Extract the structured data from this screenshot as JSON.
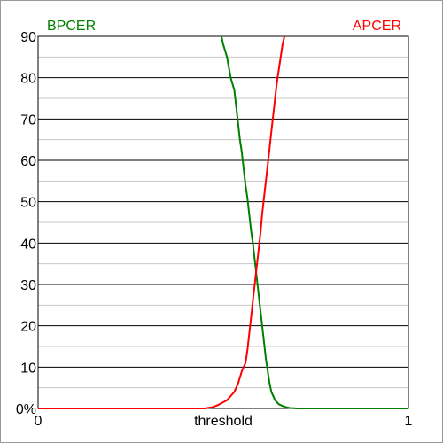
{
  "chart_data": {
    "type": "line",
    "title": "",
    "xlabel": "threshold",
    "ylabel": "",
    "xlim": [
      0,
      1
    ],
    "ylim": [
      0,
      90
    ],
    "grid": true,
    "legend_placement": "top",
    "x_tick_labels": [
      {
        "value": 0,
        "label": "0"
      },
      {
        "value": 1,
        "label": "1"
      }
    ],
    "y_tick_labels": [
      {
        "value": 0,
        "label": "0%"
      },
      {
        "value": 10,
        "label": "10"
      },
      {
        "value": 20,
        "label": "20"
      },
      {
        "value": 30,
        "label": "30"
      },
      {
        "value": 40,
        "label": "40"
      },
      {
        "value": 50,
        "label": "50"
      },
      {
        "value": 60,
        "label": "60"
      },
      {
        "value": 70,
        "label": "70"
      },
      {
        "value": 80,
        "label": "80"
      },
      {
        "value": 90,
        "label": "90"
      }
    ],
    "series": [
      {
        "name": "BPCER",
        "color": "#008000",
        "x": [
          0.495,
          0.5,
          0.51,
          0.52,
          0.53,
          0.535,
          0.54,
          0.545,
          0.55,
          0.555,
          0.56,
          0.565,
          0.57,
          0.575,
          0.58,
          0.585,
          0.59,
          0.595,
          0.6,
          0.605,
          0.61,
          0.615,
          0.62,
          0.625,
          0.63,
          0.64,
          0.65,
          0.66,
          0.67,
          0.68,
          0.7,
          1.0
        ],
        "y": [
          90,
          88,
          85,
          80,
          77,
          73,
          69,
          65,
          62,
          58,
          54,
          51,
          47,
          43,
          40,
          36,
          32,
          28,
          24,
          20,
          16,
          12,
          9,
          6,
          4,
          2,
          1,
          0.6,
          0.3,
          0.1,
          0,
          0
        ]
      },
      {
        "name": "APCER",
        "color": "#ff0000",
        "x": [
          0.0,
          0.45,
          0.47,
          0.48,
          0.49,
          0.5,
          0.51,
          0.52,
          0.53,
          0.54,
          0.55,
          0.56,
          0.565,
          0.57,
          0.575,
          0.58,
          0.585,
          0.59,
          0.595,
          0.6,
          0.605,
          0.61,
          0.615,
          0.62,
          0.625,
          0.63,
          0.635,
          0.64,
          0.645,
          0.65,
          0.655,
          0.66,
          0.665
        ],
        "y": [
          0,
          0,
          0.3,
          0.6,
          1,
          1.5,
          2,
          3,
          4,
          6,
          9,
          11,
          14,
          18,
          22,
          26,
          30,
          34,
          38,
          42,
          47,
          51,
          55,
          59,
          63,
          67,
          71,
          75,
          79,
          82,
          85,
          88,
          90
        ]
      }
    ]
  }
}
